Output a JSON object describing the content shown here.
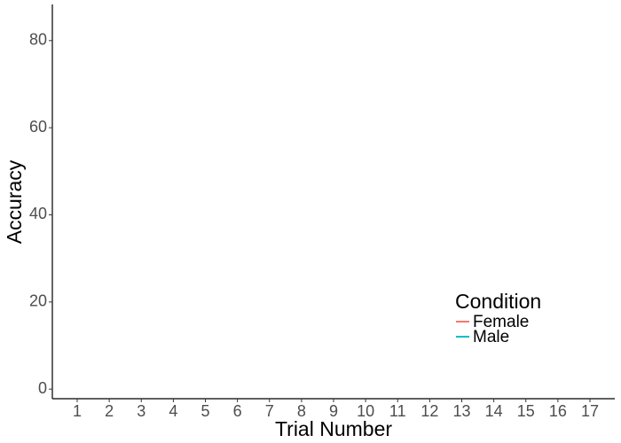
{
  "chart_data": {
    "type": "line",
    "xlabel": "Trial Number",
    "ylabel": "Accuracy",
    "categories": [
      "1",
      "2",
      "3",
      "4",
      "5",
      "6",
      "7",
      "8",
      "9",
      "10",
      "11",
      "12",
      "13",
      "14",
      "15",
      "16",
      "17"
    ],
    "series": [
      {
        "name": "Female",
        "color": "#f8766d",
        "values": [
          null,
          null,
          null,
          null,
          null,
          null,
          null,
          null,
          null,
          null,
          null,
          null,
          null,
          null,
          null,
          null,
          null
        ]
      },
      {
        "name": "Male",
        "color": "#00bfc4",
        "values": [
          null,
          null,
          null,
          null,
          null,
          null,
          null,
          null,
          null,
          null,
          null,
          null,
          null,
          null,
          null,
          null,
          null
        ]
      }
    ],
    "legend_title": "Condition",
    "legend": "bottom-right",
    "ylim": [
      -2.2,
      88.3
    ],
    "yticks": [
      0,
      20,
      40,
      60,
      80
    ],
    "grid": false
  }
}
